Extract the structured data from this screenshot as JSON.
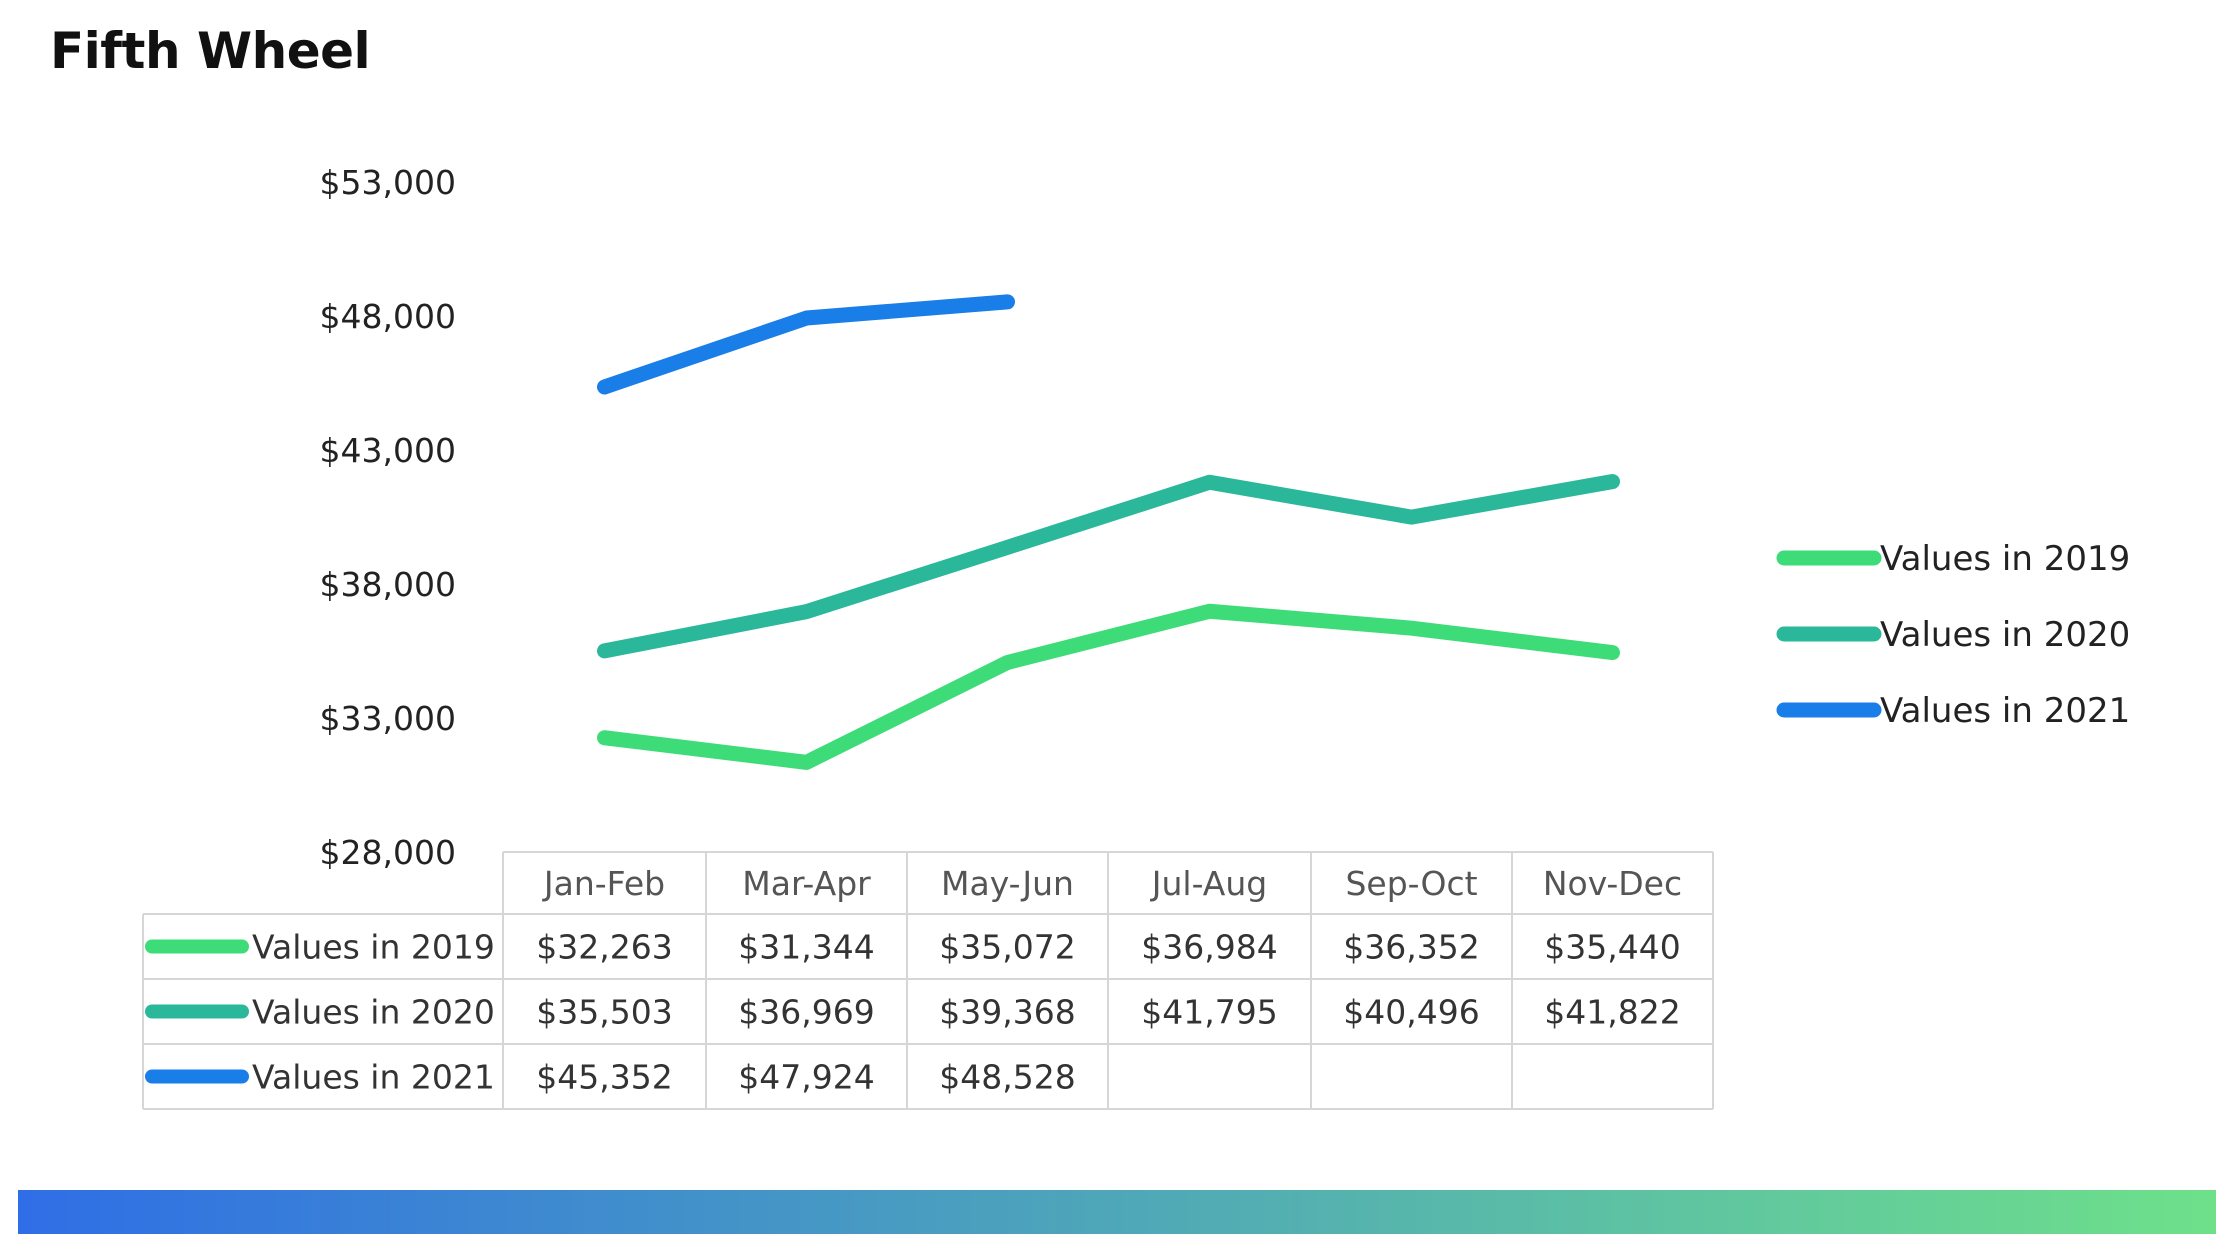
{
  "title": "Fifth Wheel",
  "chart_data": {
    "type": "line",
    "title": "",
    "xlabel": "",
    "ylabel": "",
    "categories": [
      "Jan-Feb",
      "Mar-Apr",
      "May-Jun",
      "Jul-Aug",
      "Sep-Oct",
      "Nov-Dec"
    ],
    "y_ticks": [
      "$53,000",
      "$48,000",
      "$43,000",
      "$38,000",
      "$33,000",
      "$28,000"
    ],
    "ylim": [
      28000,
      53000
    ],
    "legend_position": "right",
    "data_table": true,
    "series": [
      {
        "name": "Values in 2019",
        "color": "#3ddc78",
        "values": [
          32263,
          31344,
          35072,
          36984,
          36352,
          35440
        ],
        "labels": [
          "$32,263",
          "$31,344",
          "$35,072",
          "$36,984",
          "$36,352",
          "$35,440"
        ]
      },
      {
        "name": "Values in 2020",
        "color": "#2bb89a",
        "values": [
          35503,
          36969,
          39368,
          41795,
          40496,
          41822
        ],
        "labels": [
          "$35,503",
          "$36,969",
          "$39,368",
          "$41,795",
          "$40,496",
          "$41,822"
        ]
      },
      {
        "name": "Values in 2021",
        "color": "#1a7ee8",
        "values": [
          45352,
          47924,
          48528,
          null,
          null,
          null
        ],
        "labels": [
          "$45,352",
          "$47,924",
          "$48,528",
          "",
          "",
          ""
        ]
      }
    ]
  },
  "footer_bar": {
    "color_start": "#2f6ee6",
    "color_end": "#6ee08a"
  }
}
